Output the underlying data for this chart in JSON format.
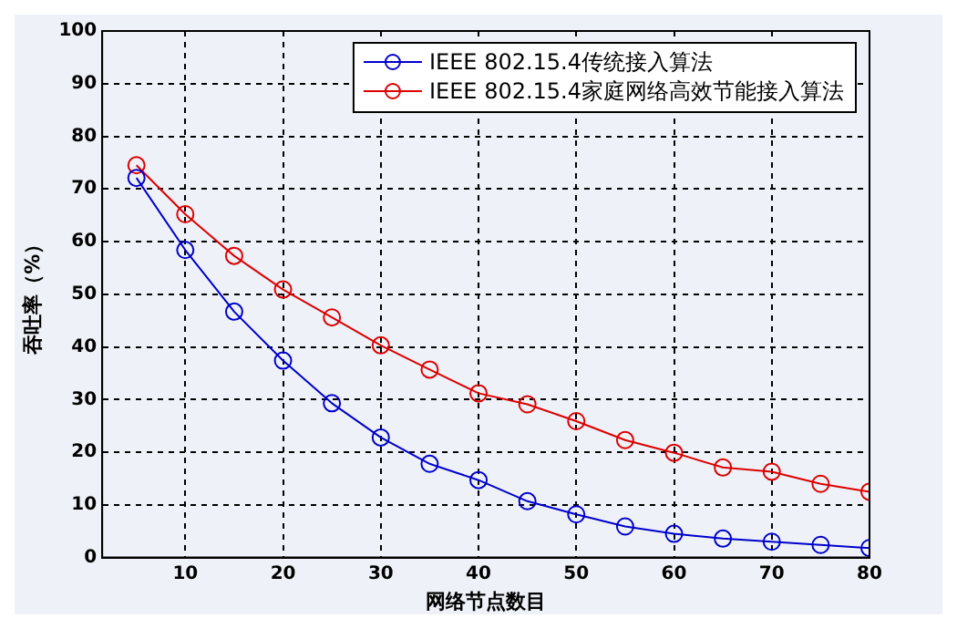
{
  "chart_data": {
    "type": "line",
    "xlabel": "网络节点数目",
    "ylabel": "吞吐率（%）",
    "x": [
      5,
      10,
      15,
      20,
      25,
      30,
      35,
      40,
      45,
      50,
      55,
      60,
      65,
      70,
      75,
      80
    ],
    "series": [
      {
        "name": "IEEE 802.15.4传统接入算法",
        "color": "#0000cc",
        "values": [
          72.1,
          58.4,
          46.7,
          37.4,
          29.3,
          22.8,
          17.8,
          14.7,
          10.7,
          8.2,
          5.9,
          4.5,
          3.6,
          3.0,
          2.4,
          1.8
        ]
      },
      {
        "name": "IEEE 802.15.4家庭网络高效节能接入算法",
        "color": "#dd0000",
        "values": [
          74.5,
          65.2,
          57.3,
          50.9,
          45.6,
          40.3,
          35.7,
          31.2,
          29.1,
          25.9,
          22.3,
          19.9,
          17.1,
          16.3,
          14.0,
          12.5
        ]
      }
    ],
    "xlim": [
      1.5,
      80
    ],
    "xticks": [
      10,
      20,
      30,
      40,
      50,
      60,
      70,
      80
    ],
    "ylim": [
      0,
      100
    ],
    "yticks": [
      0,
      10,
      20,
      30,
      40,
      50,
      60,
      70,
      80,
      90,
      100
    ],
    "grid": true,
    "legend": "top right",
    "marker": "circle",
    "line_style": "solid"
  }
}
